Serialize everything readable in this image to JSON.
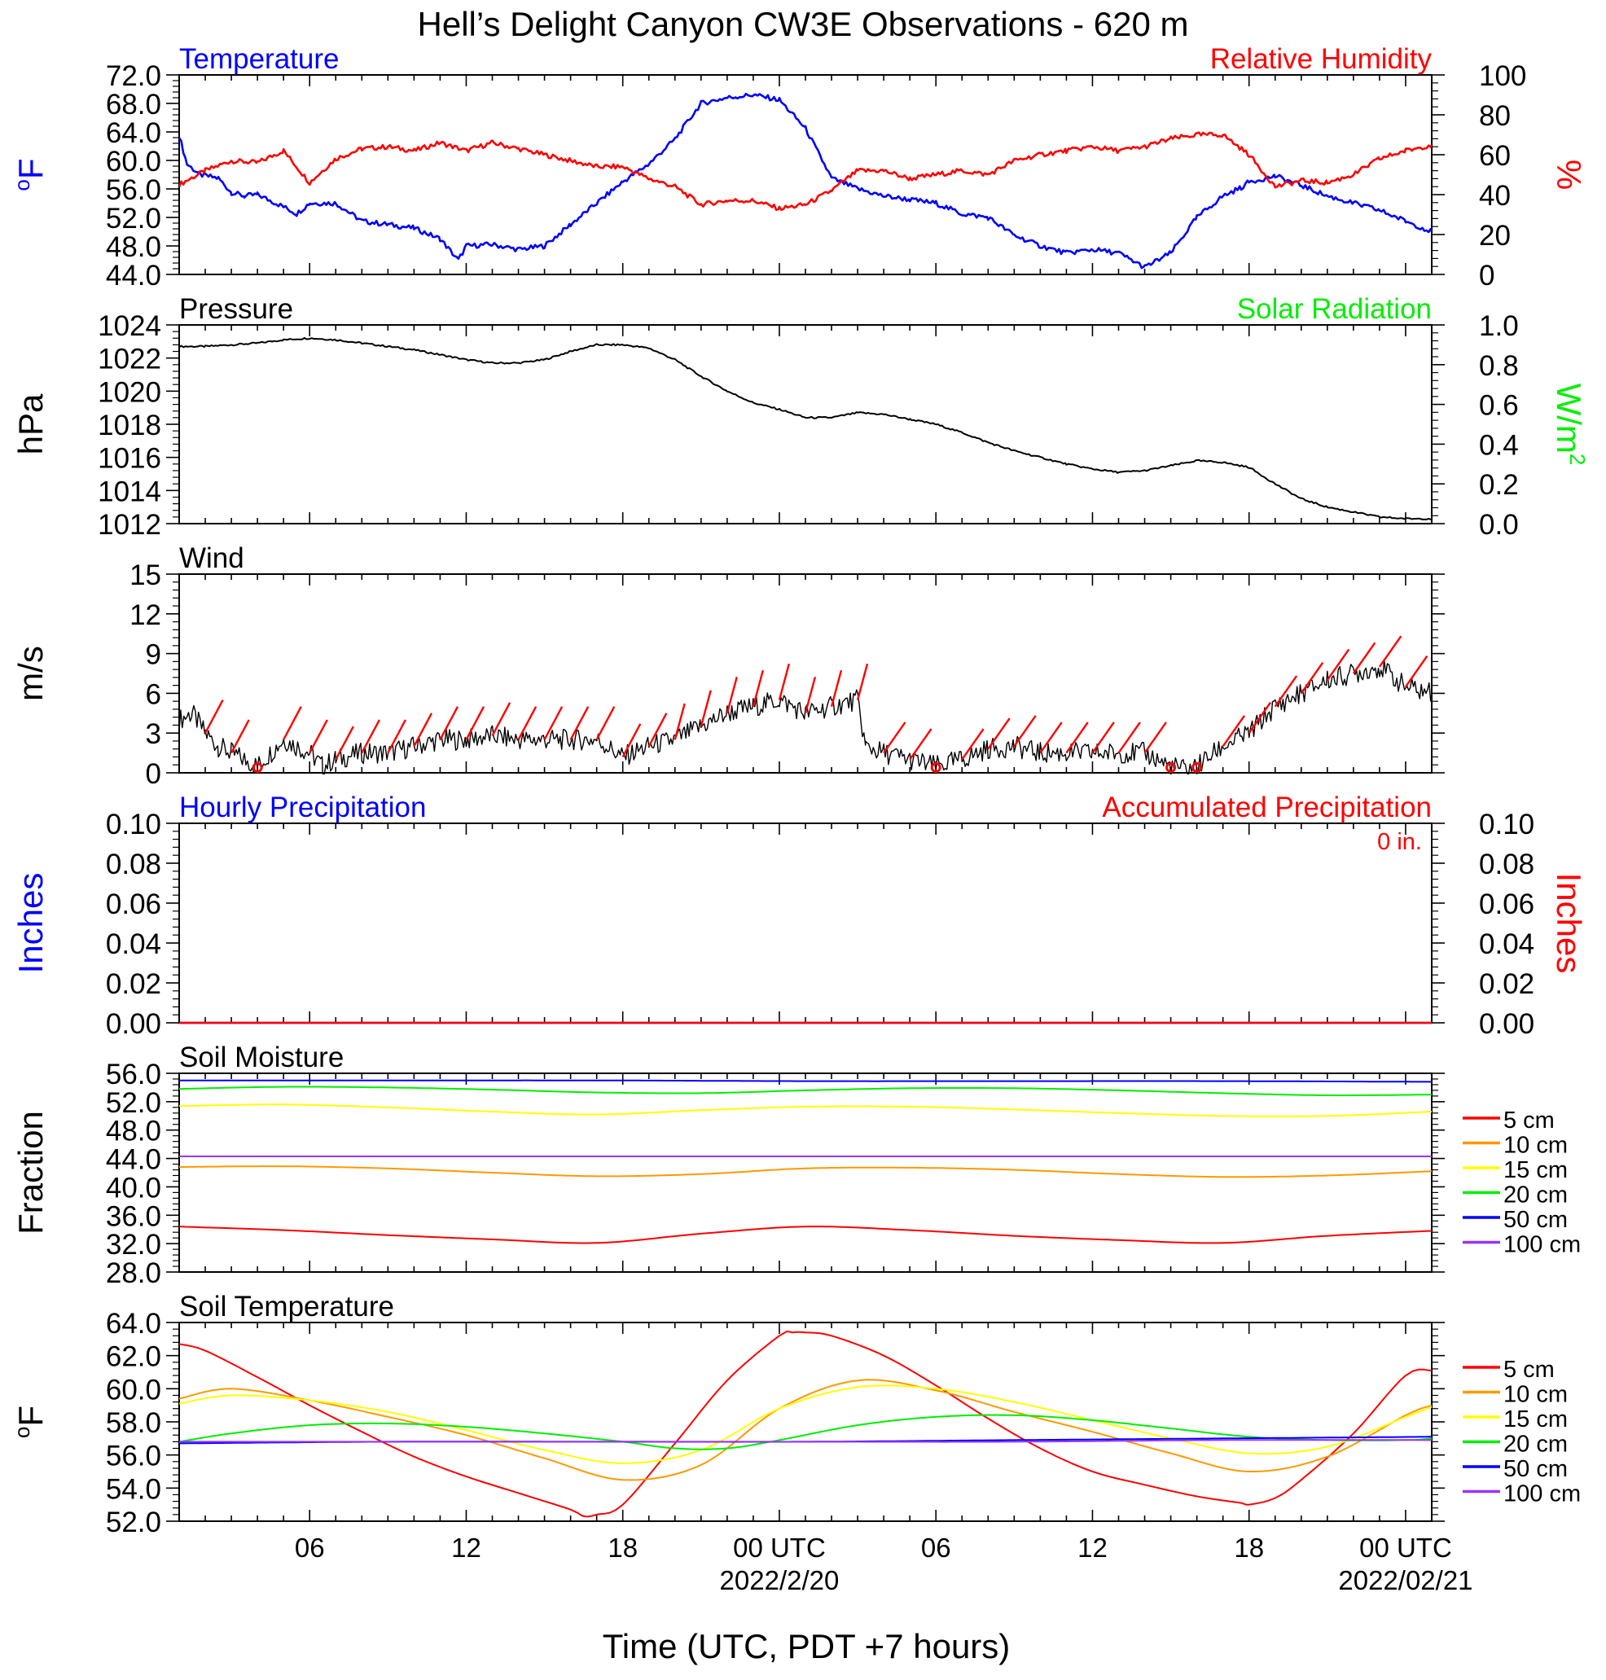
{
  "title": "Hell’s Delight Canyon CW3E Observations - 620 m",
  "xaxis": {
    "label": "Time (UTC, PDT +7 hours)",
    "ticks": [
      {
        "hour": 6,
        "label": "06",
        "sub": ""
      },
      {
        "hour": 12,
        "label": "12",
        "sub": ""
      },
      {
        "hour": 18,
        "label": "18",
        "sub": ""
      },
      {
        "hour": 24,
        "label": "00 UTC",
        "sub": "2022/2/20"
      },
      {
        "hour": 30,
        "label": "06",
        "sub": ""
      },
      {
        "hour": 36,
        "label": "12",
        "sub": ""
      },
      {
        "hour": 42,
        "label": "18",
        "sub": ""
      },
      {
        "hour": 48,
        "label": "00 UTC",
        "sub": "2022/02/21"
      }
    ],
    "range_hours": [
      1,
      49
    ]
  },
  "panels": {
    "temp_rh": {
      "left_title": "Temperature",
      "right_title": "Relative Humidity",
      "left_unit": "F",
      "left_unit_prefix": "o",
      "right_unit": "%",
      "left_ticks": [
        "72.0",
        "68.0",
        "64.0",
        "60.0",
        "56.0",
        "52.0",
        "48.0",
        "44.0"
      ],
      "right_ticks": [
        "100",
        "80",
        "60",
        "40",
        "20",
        "0"
      ]
    },
    "pressure": {
      "left_title": "Pressure",
      "right_title": "Solar Radiation",
      "left_unit": "hPa",
      "right_unit": "W/m",
      "right_unit_sup": "2",
      "left_ticks": [
        "1024",
        "1022",
        "1020",
        "1018",
        "1016",
        "1014",
        "1012"
      ],
      "right_ticks": [
        "1.0",
        "0.8",
        "0.6",
        "0.4",
        "0.2",
        "0.0"
      ]
    },
    "wind": {
      "left_title": "Wind",
      "left_unit": "m/s",
      "left_ticks": [
        "15",
        "12",
        "9",
        "6",
        "3",
        "0"
      ]
    },
    "precip": {
      "left_title": "Hourly Precipitation",
      "right_title": "Accumulated Precipitation",
      "total_label": "0 in.",
      "left_unit": "Inches",
      "right_unit": "Inches",
      "left_ticks": [
        "0.10",
        "0.08",
        "0.06",
        "0.04",
        "0.02",
        "0.00"
      ],
      "right_ticks": [
        "0.10",
        "0.08",
        "0.06",
        "0.04",
        "0.02",
        "0.00"
      ]
    },
    "soil_moisture": {
      "left_title": "Soil Moisture",
      "left_unit": "Fraction",
      "left_ticks": [
        "56.0",
        "52.0",
        "48.0",
        "44.0",
        "40.0",
        "36.0",
        "32.0",
        "28.0"
      ],
      "legend": [
        "5 cm",
        "10 cm",
        "15 cm",
        "20 cm",
        "50 cm",
        "100 cm"
      ]
    },
    "soil_temp": {
      "left_title": "Soil Temperature",
      "left_unit": "F",
      "left_unit_prefix": "o",
      "left_ticks": [
        "64.0",
        "62.0",
        "60.0",
        "58.0",
        "56.0",
        "54.0",
        "52.0"
      ],
      "legend": [
        "5 cm",
        "10 cm",
        "15 cm",
        "20 cm",
        "50 cm",
        "100 cm"
      ]
    }
  },
  "colors": {
    "temperature": "#0000ff",
    "humidity": "#ff0000",
    "pressure": "#000000",
    "solar": "#00ee00",
    "wind": "#000000",
    "barbs": "#ff0000",
    "hourly_precip": "#0000ff",
    "accum_precip": "#ff0000",
    "depth": [
      "#ff0000",
      "#ff9900",
      "#ffff00",
      "#00ee00",
      "#0000ff",
      "#9933ff"
    ]
  },
  "chart_data": [
    {
      "type": "line",
      "panel": "temp_rh",
      "x_unit": "hours since 2022-02-19 00 UTC",
      "ylim": [
        44,
        72
      ],
      "y2lim": [
        0,
        100
      ],
      "series": [
        {
          "name": "Temperature",
          "axis": "left",
          "x": [
            1,
            1.3,
            1.8,
            2.5,
            3,
            3.5,
            4,
            5,
            5.5,
            6,
            7,
            8,
            9,
            10,
            11,
            11.7,
            12,
            13,
            14,
            15,
            16,
            17,
            18,
            19,
            20,
            21,
            22,
            23,
            24,
            25,
            26,
            27,
            28,
            29,
            30,
            31,
            32,
            33,
            34,
            35,
            36,
            37,
            38,
            39,
            40,
            41,
            41.7,
            42,
            43,
            44,
            45,
            46,
            47,
            48,
            49
          ],
          "y": [
            63.5,
            59.5,
            58,
            57.5,
            55.5,
            55,
            55.2,
            53.5,
            52.5,
            54,
            54,
            51.5,
            51,
            50.5,
            49,
            46,
            48,
            48.2,
            47.5,
            48,
            51,
            54,
            57,
            59.5,
            63,
            68,
            68.8,
            69.2,
            68.5,
            64.5,
            57.5,
            56,
            55,
            54.5,
            54,
            52.5,
            52,
            49.5,
            48,
            47,
            47.5,
            47,
            45,
            47,
            52,
            55,
            56.2,
            57,
            57.8,
            56.5,
            55,
            54,
            53,
            51.5,
            50
          ]
        },
        {
          "name": "Relative Humidity",
          "axis": "right",
          "x": [
            1,
            2,
            3,
            4,
            5,
            6,
            7,
            8,
            9,
            10,
            11,
            12,
            13,
            14,
            15,
            16,
            17,
            18,
            19,
            20,
            21,
            22,
            23,
            24,
            25,
            26,
            27,
            28,
            29,
            30,
            31,
            32,
            33,
            34,
            35,
            36,
            37,
            38,
            39,
            40,
            41,
            42,
            43,
            44,
            45,
            46,
            47,
            48,
            49
          ],
          "y": [
            45,
            52,
            57,
            56,
            62,
            46,
            58,
            63,
            64,
            62,
            66,
            62,
            66,
            63,
            60,
            57,
            54,
            54,
            48,
            44,
            35,
            37,
            37,
            33,
            35,
            42,
            52,
            52,
            48,
            50,
            52,
            50,
            57,
            60,
            62,
            64,
            62,
            64,
            68,
            70,
            70,
            60,
            44,
            47,
            46,
            50,
            58,
            62,
            65
          ]
        }
      ]
    },
    {
      "type": "line",
      "panel": "pressure",
      "x_unit": "hours since 2022-02-19 00 UTC",
      "ylim": [
        1012,
        1024
      ],
      "y2lim": [
        0,
        1
      ],
      "series": [
        {
          "name": "Pressure",
          "x": [
            1,
            2,
            3,
            4,
            5,
            6,
            7,
            8,
            9,
            10,
            11,
            12,
            13,
            14,
            15,
            16,
            17,
            18,
            19,
            20,
            21,
            22,
            23,
            24,
            25,
            26,
            27,
            28,
            29,
            30,
            31,
            32,
            33,
            34,
            35,
            36,
            37,
            38,
            39,
            40,
            41,
            42,
            43,
            44,
            45,
            46,
            47,
            48,
            49
          ],
          "y": [
            1022.7,
            1022.7,
            1022.8,
            1022.9,
            1023.1,
            1023.2,
            1023.1,
            1022.9,
            1022.7,
            1022.5,
            1022.2,
            1021.9,
            1021.7,
            1021.7,
            1021.9,
            1022.4,
            1022.8,
            1022.8,
            1022.6,
            1021.9,
            1020.9,
            1020,
            1019.3,
            1018.9,
            1018.4,
            1018.4,
            1018.7,
            1018.6,
            1018.3,
            1018,
            1017.5,
            1016.9,
            1016.4,
            1016,
            1015.6,
            1015.3,
            1015.1,
            1015.2,
            1015.5,
            1015.8,
            1015.7,
            1015.4,
            1014.4,
            1013.5,
            1013,
            1012.7,
            1012.4,
            1012.3,
            1012.3
          ]
        },
        {
          "name": "Solar Radiation",
          "x": [],
          "y": []
        }
      ]
    },
    {
      "type": "line",
      "panel": "wind",
      "x_unit": "hours since 2022-02-19 00 UTC",
      "ylim": [
        0,
        15
      ],
      "series": [
        {
          "name": "Wind",
          "x": [
            1,
            1.5,
            2,
            2.5,
            3,
            3.5,
            4,
            5,
            6,
            6.5,
            7,
            8,
            9,
            10,
            11,
            12,
            13,
            14,
            15,
            16,
            17,
            18,
            19,
            20,
            21,
            22,
            23,
            24,
            25,
            26,
            27,
            27.3,
            28,
            29,
            30,
            31,
            32,
            33,
            34,
            35,
            36,
            37,
            38,
            39,
            39.5,
            40,
            41,
            42,
            43,
            44,
            45,
            46,
            47,
            48,
            49
          ],
          "y": [
            4,
            4.5,
            3,
            2,
            1.5,
            1,
            0.5,
            2.5,
            1.5,
            0.5,
            1,
            1.5,
            1.5,
            2,
            2.5,
            2.5,
            2.8,
            2.5,
            2.5,
            2.5,
            2.5,
            1.2,
            2,
            2.5,
            3.5,
            4.5,
            5,
            5.5,
            4.5,
            5,
            5.5,
            2,
            1.5,
            1,
            0.5,
            1,
            1.8,
            2,
            1.5,
            1.5,
            1.5,
            1.5,
            1.5,
            0.5,
            0.3,
            0.5,
            2,
            3,
            5,
            6,
            7,
            7.5,
            8,
            6.5,
            6
          ]
        }
      ]
    },
    {
      "type": "line",
      "panel": "precip",
      "x_unit": "hours since 2022-02-19 00 UTC",
      "ylim": [
        0,
        0.1
      ],
      "y2lim": [
        0,
        0.1
      ],
      "series": [
        {
          "name": "Hourly Precipitation",
          "x": [
            1,
            49
          ],
          "y": [
            0,
            0
          ]
        },
        {
          "name": "Accumulated Precipitation",
          "x": [
            1,
            49
          ],
          "y": [
            0,
            0
          ]
        }
      ]
    },
    {
      "type": "line",
      "panel": "soil_moisture",
      "x_unit": "hours since 2022-02-19 00 UTC",
      "ylim": [
        28,
        56
      ],
      "series": [
        {
          "name": "5 cm",
          "x": [
            1,
            5,
            9,
            13,
            17,
            21,
            25,
            29,
            33,
            37,
            41,
            45,
            49
          ],
          "y": [
            34.4,
            33.9,
            33.2,
            32.6,
            32.1,
            33.4,
            34.4,
            33.9,
            33.1,
            32.5,
            32.1,
            33.1,
            33.8
          ]
        },
        {
          "name": "10 cm",
          "x": [
            1,
            5,
            9,
            13,
            17,
            21,
            25,
            29,
            33,
            37,
            41,
            45,
            49
          ],
          "y": [
            42.8,
            42.9,
            42.6,
            42,
            41.5,
            41.8,
            42.6,
            42.7,
            42.4,
            41.8,
            41.4,
            41.6,
            42.2
          ]
        },
        {
          "name": "15 cm",
          "x": [
            1,
            5,
            9,
            13,
            17,
            21,
            25,
            29,
            33,
            37,
            41,
            45,
            49
          ],
          "y": [
            51.4,
            51.6,
            51.2,
            50.6,
            50.2,
            50.8,
            51.3,
            51.3,
            50.9,
            50.4,
            50,
            50,
            50.6
          ]
        },
        {
          "name": "20 cm",
          "x": [
            1,
            5,
            9,
            13,
            17,
            21,
            25,
            29,
            33,
            37,
            41,
            45,
            49
          ],
          "y": [
            53.8,
            54.1,
            54,
            53.7,
            53.3,
            53.2,
            53.6,
            53.9,
            53.9,
            53.6,
            53.2,
            52.9,
            53
          ]
        },
        {
          "name": "50 cm",
          "x": [
            1,
            9,
            17,
            25,
            33,
            41,
            49
          ],
          "y": [
            55,
            55,
            55,
            54.9,
            54.9,
            54.9,
            54.8
          ]
        },
        {
          "name": "100 cm",
          "x": [
            1,
            9,
            17,
            25,
            33,
            41,
            49
          ],
          "y": [
            44.3,
            44.3,
            44.3,
            44.3,
            44.3,
            44.3,
            44.3
          ]
        }
      ]
    },
    {
      "type": "line",
      "panel": "soil_temp",
      "x_unit": "hours since 2022-02-19 00 UTC",
      "ylim": [
        52,
        64
      ],
      "series": [
        {
          "name": "5 cm",
          "x": [
            1,
            2,
            4,
            6,
            8,
            10,
            12,
            14,
            16,
            16.5,
            17,
            18,
            20,
            22,
            24,
            24.5,
            25,
            26,
            28,
            30,
            32,
            34,
            36,
            38,
            40,
            41.7,
            42,
            43,
            44,
            46,
            48,
            49
          ],
          "y": [
            62.7,
            62.3,
            60.7,
            59,
            57.4,
            55.9,
            54.7,
            53.7,
            52.7,
            52.3,
            52.4,
            53,
            56.7,
            60.5,
            63.2,
            63.4,
            63.4,
            63.2,
            62,
            60.2,
            58.2,
            56.4,
            55,
            54.2,
            53.5,
            53.1,
            53,
            53.4,
            54.5,
            57.3,
            60.8,
            61.1
          ]
        },
        {
          "name": "10 cm",
          "x": [
            1,
            3,
            6,
            9,
            12,
            15,
            18,
            21,
            24,
            27,
            30,
            33,
            36,
            39,
            42,
            45,
            48,
            49
          ],
          "y": [
            59.4,
            60,
            59.3,
            58.3,
            57.2,
            55.8,
            54.5,
            55.4,
            58.8,
            60.5,
            59.9,
            58.6,
            57.4,
            56.1,
            55,
            55.9,
            58.4,
            59
          ]
        },
        {
          "name": "15 cm",
          "x": [
            1,
            3,
            6,
            9,
            12,
            15,
            18,
            21,
            24,
            27,
            30,
            33,
            36,
            39,
            42,
            45,
            48,
            49
          ],
          "y": [
            59.1,
            59.6,
            59.3,
            58.6,
            57.5,
            56.3,
            55.5,
            56.3,
            58.8,
            60.1,
            60,
            59.2,
            58.1,
            57,
            56.1,
            56.5,
            58.3,
            58.9
          ]
        },
        {
          "name": "20 cm",
          "x": [
            1,
            3,
            6,
            9,
            12,
            15,
            18,
            20,
            22,
            24,
            27,
            30,
            33,
            36,
            39,
            42,
            45,
            48,
            49
          ],
          "y": [
            56.8,
            57.3,
            57.8,
            57.9,
            57.7,
            57.3,
            56.8,
            56.4,
            56.4,
            56.9,
            57.8,
            58.3,
            58.4,
            58.1,
            57.6,
            57.1,
            56.9,
            56.9,
            57
          ]
        },
        {
          "name": "50 cm",
          "x": [
            1,
            9,
            17,
            25,
            33,
            41,
            49
          ],
          "y": [
            56.7,
            56.8,
            56.8,
            56.8,
            56.9,
            57,
            57.1
          ]
        },
        {
          "name": "100 cm",
          "x": [
            1,
            9,
            17,
            25,
            33,
            41,
            49
          ],
          "y": [
            56.8,
            56.8,
            56.8,
            56.8,
            56.8,
            56.9,
            56.9
          ]
        }
      ]
    }
  ]
}
